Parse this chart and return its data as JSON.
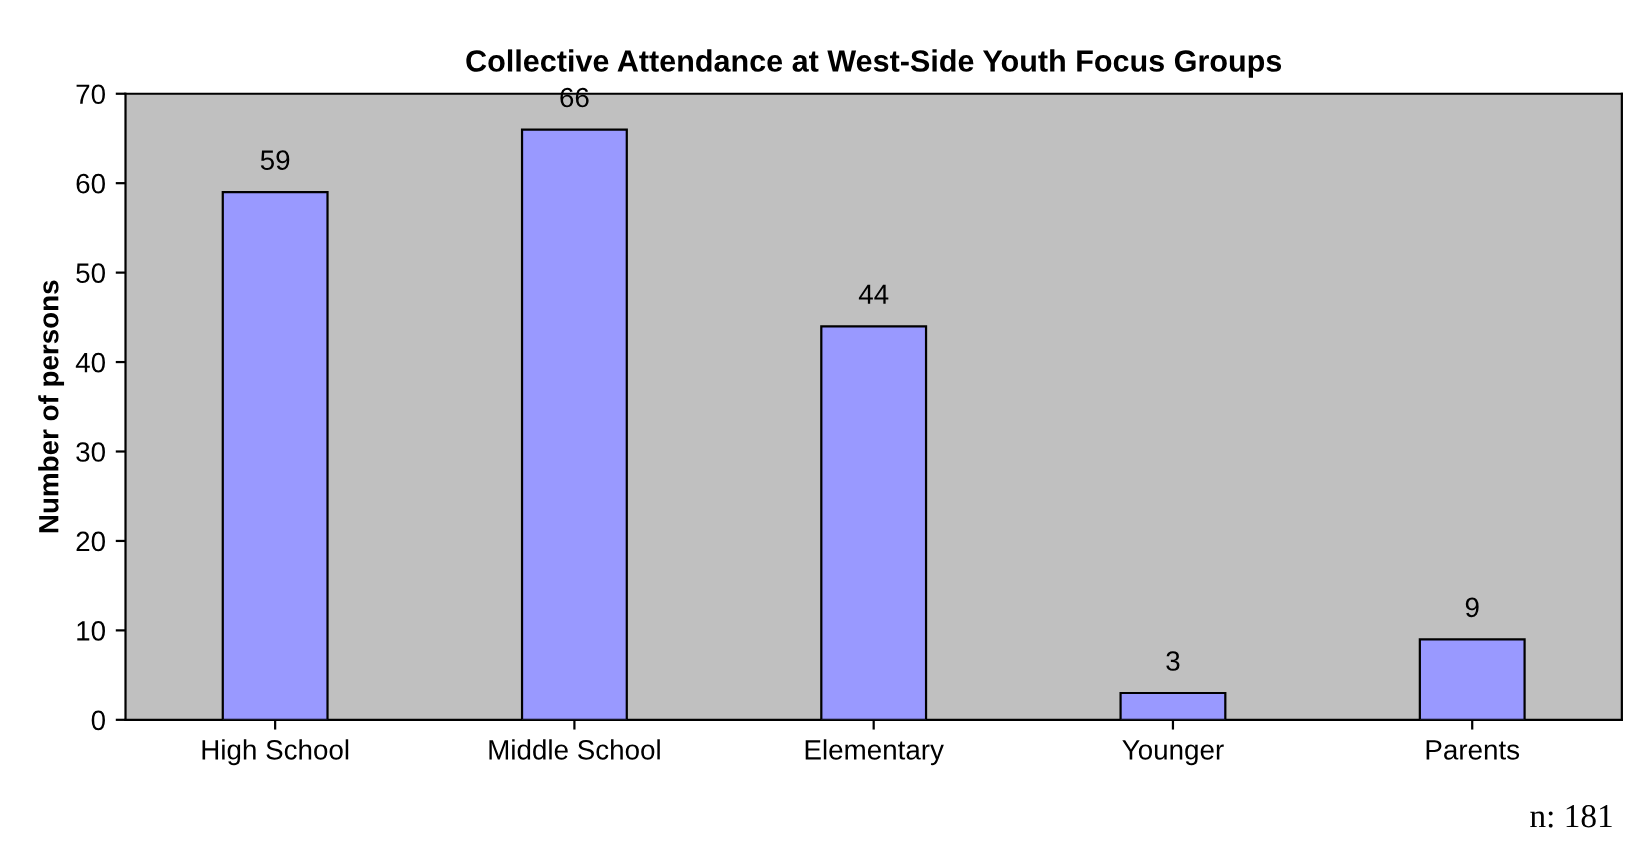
{
  "chart_data": {
    "type": "bar",
    "title": "Collective Attendance at West-Side Youth Focus Groups",
    "ylabel": "Number of persons",
    "categories": [
      "High School",
      "Middle School",
      "Elementary",
      "Younger",
      "Parents"
    ],
    "values": [
      59,
      66,
      44,
      3,
      9
    ],
    "color": "#9999ff",
    "ylim": [
      0,
      70
    ],
    "yticks": [
      0,
      10,
      20,
      30,
      40,
      50,
      60,
      70
    ],
    "grid": false,
    "data_labels": true,
    "annotations": [
      "n: 181"
    ]
  }
}
